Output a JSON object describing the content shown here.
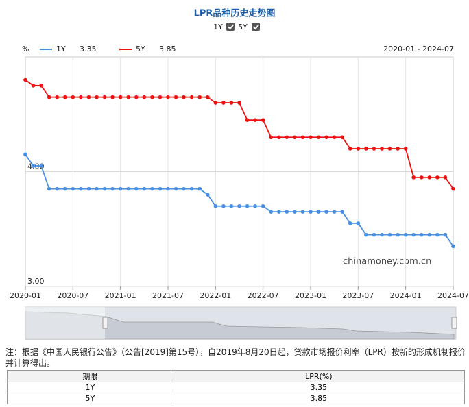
{
  "chart_data": {
    "type": "line",
    "title": "LPR品种历史走势图",
    "unit": "%",
    "range": "2020-01 - 2024-07",
    "watermark": "chinamoney.com.cn",
    "categories": [
      "2020-01",
      null,
      null,
      null,
      null,
      null,
      "2020-07",
      null,
      null,
      null,
      null,
      null,
      "2021-01",
      null,
      null,
      null,
      null,
      null,
      "2021-07",
      null,
      null,
      null,
      null,
      null,
      "2022-01",
      null,
      null,
      null,
      null,
      null,
      "2022-07",
      null,
      null,
      null,
      null,
      null,
      "2023-01",
      null,
      null,
      null,
      null,
      null,
      "2023-07",
      null,
      null,
      null,
      null,
      null,
      "2024-01",
      null,
      null,
      null,
      null,
      null,
      "2024-07"
    ],
    "series": [
      {
        "name": "1Y",
        "color": "#4a90e2",
        "values": [
          4.15,
          4.05,
          4.05,
          3.85,
          3.85,
          3.85,
          3.85,
          3.85,
          3.85,
          3.85,
          3.85,
          3.85,
          3.85,
          3.85,
          3.85,
          3.85,
          3.85,
          3.85,
          3.85,
          3.85,
          3.85,
          3.85,
          3.85,
          3.8,
          3.7,
          3.7,
          3.7,
          3.7,
          3.7,
          3.7,
          3.7,
          3.65,
          3.65,
          3.65,
          3.65,
          3.65,
          3.65,
          3.65,
          3.65,
          3.65,
          3.65,
          3.55,
          3.55,
          3.45,
          3.45,
          3.45,
          3.45,
          3.45,
          3.45,
          3.45,
          3.45,
          3.45,
          3.45,
          3.45,
          3.35
        ]
      },
      {
        "name": "5Y",
        "color": "#ee1111",
        "values": [
          4.8,
          4.75,
          4.75,
          4.65,
          4.65,
          4.65,
          4.65,
          4.65,
          4.65,
          4.65,
          4.65,
          4.65,
          4.65,
          4.65,
          4.65,
          4.65,
          4.65,
          4.65,
          4.65,
          4.65,
          4.65,
          4.65,
          4.65,
          4.65,
          4.6,
          4.6,
          4.6,
          4.6,
          4.45,
          4.45,
          4.45,
          4.3,
          4.3,
          4.3,
          4.3,
          4.3,
          4.3,
          4.3,
          4.3,
          4.3,
          4.3,
          4.2,
          4.2,
          4.2,
          4.2,
          4.2,
          4.2,
          4.2,
          4.2,
          3.95,
          3.95,
          3.95,
          3.95,
          3.95,
          3.85
        ]
      }
    ],
    "ylim": [
      3,
      5
    ],
    "yticks": [
      {
        "value": 3,
        "label": "3.00"
      },
      {
        "value": 4,
        "label": "4.00"
      }
    ],
    "grid": true
  },
  "note": "注：根据《中国人民银行公告》（公告[2019]第15号），自2019年8月20日起，贷款市场报价利率（LPR）按新的形成机制报价并计算得出。",
  "table": {
    "header": [
      "期限",
      "LPR(%)"
    ],
    "rows": [
      [
        "1Y",
        "3.35"
      ],
      [
        "5Y",
        "3.85"
      ]
    ]
  }
}
